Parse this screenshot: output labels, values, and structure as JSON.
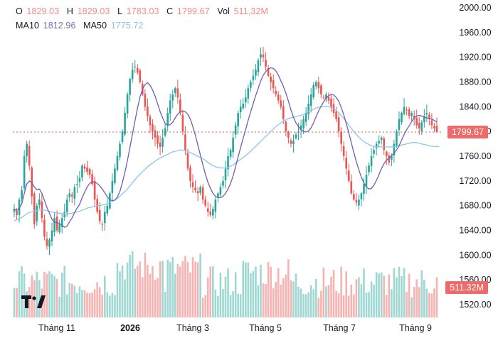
{
  "legend": {
    "open_label": "O",
    "open": "1829.03",
    "high_label": "H",
    "high": "1829.03",
    "low_label": "L",
    "low": "1783.03",
    "close_label": "C",
    "close": "1799.67",
    "vol_label": "Vol",
    "vol": "511,32M",
    "ma10_label": "MA10",
    "ma10": "1812.96",
    "ma50_label": "MA50",
    "ma50": "1775.72"
  },
  "price_tag": "1799.67",
  "volume_tag": "511.32M",
  "colors": {
    "up": "#26a69a",
    "down": "#ef5350",
    "ma10": "#6f5fb2",
    "ma50": "#8cc4ec",
    "last_price": "#ef5350"
  },
  "chart_data": {
    "type": "candlestick",
    "y_ticks": [
      "2000.00",
      "1960.00",
      "1920.00",
      "1880.00",
      "1840.00",
      "1800.00",
      "1760.00",
      "1720.00",
      "1680.00",
      "1640.00",
      "1600.00",
      "1560.00",
      "1520.00"
    ],
    "x_labels": [
      "Tháng 11",
      "2026",
      "Tháng 3",
      "Tháng 5",
      "Tháng 7",
      "Tháng 9"
    ],
    "ylim": [
      1520,
      2000
    ],
    "last_close": 1799.67,
    "close_path": [
      1675,
      1665,
      1690,
      1705,
      1760,
      1780,
      1745,
      1695,
      1650,
      1680,
      1690,
      1660,
      1630,
      1615,
      1625,
      1640,
      1660,
      1640,
      1650,
      1660,
      1670,
      1690,
      1700,
      1695,
      1710,
      1715,
      1725,
      1745,
      1740,
      1735,
      1730,
      1715,
      1690,
      1670,
      1655,
      1650,
      1670,
      1680,
      1700,
      1720,
      1740,
      1760,
      1780,
      1800,
      1830,
      1860,
      1885,
      1900,
      1905,
      1895,
      1880,
      1860,
      1840,
      1825,
      1810,
      1800,
      1790,
      1780,
      1775,
      1790,
      1805,
      1830,
      1850,
      1860,
      1870,
      1855,
      1830,
      1800,
      1770,
      1740,
      1720,
      1710,
      1705,
      1700,
      1710,
      1690,
      1680,
      1670,
      1665,
      1675,
      1690,
      1700,
      1710,
      1720,
      1740,
      1760,
      1770,
      1790,
      1810,
      1830,
      1840,
      1845,
      1855,
      1870,
      1880,
      1890,
      1900,
      1915,
      1925,
      1920,
      1905,
      1890,
      1880,
      1870,
      1860,
      1850,
      1840,
      1820,
      1800,
      1790,
      1780,
      1785,
      1795,
      1800,
      1810,
      1820,
      1830,
      1845,
      1860,
      1875,
      1880,
      1870,
      1860,
      1855,
      1860,
      1850,
      1840,
      1830,
      1820,
      1800,
      1780,
      1760,
      1740,
      1720,
      1700,
      1690,
      1685,
      1690,
      1700,
      1715,
      1730,
      1745,
      1760,
      1770,
      1780,
      1785,
      1790,
      1770,
      1760,
      1750,
      1760,
      1780,
      1800,
      1820,
      1830,
      1840,
      1835,
      1825,
      1830,
      1820,
      1810,
      1805,
      1815,
      1825,
      1830,
      1820,
      1810,
      1805,
      1800
    ],
    "series": [
      {
        "name": "MA10",
        "values": [
          1675,
          1672,
          1676,
          1683,
          1700,
          1715,
          1720,
          1717,
          1710,
          1706,
          1707,
          1700,
          1689,
          1677,
          1668,
          1658,
          1653,
          1653,
          1651,
          1649,
          1645,
          1647,
          1654,
          1660,
          1669,
          1676,
          1682,
          1693,
          1702,
          1710,
          1716,
          1719,
          1718,
          1716,
          1712,
          1707,
          1701,
          1694,
          1690,
          1688,
          1689,
          1694,
          1703,
          1717,
          1734,
          1753,
          1774,
          1796,
          1817,
          1838,
          1856,
          1868,
          1876,
          1879,
          1875,
          1867,
          1857,
          1845,
          1832,
          1822,
          1813,
          1810,
          1811,
          1815,
          1822,
          1828,
          1832,
          1833,
          1832,
          1828,
          1820,
          1808,
          1794,
          1778,
          1762,
          1746,
          1731,
          1718,
          1708,
          1700,
          1695,
          1693,
          1693,
          1695,
          1700,
          1707,
          1716,
          1728,
          1743,
          1759,
          1774,
          1789,
          1803,
          1818,
          1832,
          1845,
          1858,
          1870,
          1882,
          1891,
          1897,
          1901,
          1903,
          1902,
          1898,
          1891,
          1882,
          1873,
          1862,
          1849,
          1835,
          1823,
          1814,
          1808,
          1803,
          1800,
          1799,
          1801,
          1806,
          1814,
          1824,
          1833,
          1841,
          1848,
          1854,
          1858,
          1860,
          1859,
          1855,
          1849,
          1839,
          1827,
          1813,
          1798,
          1782,
          1766,
          1751,
          1738,
          1726,
          1717,
          1710,
          1707,
          1708,
          1713,
          1721,
          1730,
          1740,
          1748,
          1754,
          1757,
          1761,
          1765,
          1770,
          1777,
          1786,
          1795,
          1803,
          1809,
          1816,
          1822,
          1825,
          1826,
          1825,
          1823,
          1822,
          1821,
          1820,
          1818,
          1815
        ]
      },
      {
        "name": "MA50",
        "values": [
          1655,
          1657,
          1659,
          1661,
          1664,
          1667,
          1669,
          1670,
          1671,
          1672,
          1673,
          1673,
          1673,
          1672,
          1671,
          1670,
          1669,
          1668,
          1668,
          1667,
          1667,
          1667,
          1667,
          1668,
          1669,
          1670,
          1671,
          1673,
          1674,
          1676,
          1677,
          1678,
          1679,
          1680,
          1680,
          1681,
          1682,
          1683,
          1685,
          1687,
          1689,
          1692,
          1695,
          1699,
          1703,
          1707,
          1712,
          1717,
          1722,
          1727,
          1731,
          1735,
          1739,
          1743,
          1746,
          1749,
          1752,
          1755,
          1757,
          1759,
          1761,
          1763,
          1765,
          1767,
          1768,
          1769,
          1770,
          1770,
          1769,
          1768,
          1766,
          1764,
          1762,
          1760,
          1758,
          1756,
          1753,
          1750,
          1747,
          1745,
          1743,
          1742,
          1741,
          1741,
          1741,
          1742,
          1744,
          1746,
          1749,
          1752,
          1755,
          1758,
          1761,
          1764,
          1768,
          1772,
          1776,
          1780,
          1784,
          1788,
          1792,
          1796,
          1800,
          1804,
          1808,
          1811,
          1814,
          1817,
          1819,
          1821,
          1822,
          1823,
          1824,
          1825,
          1826,
          1828,
          1830,
          1832,
          1834,
          1836,
          1838,
          1839,
          1840,
          1841,
          1841,
          1840,
          1839,
          1837,
          1834,
          1830,
          1826,
          1821,
          1816,
          1810,
          1805,
          1800,
          1795,
          1791,
          1787,
          1784,
          1781,
          1779,
          1777,
          1776,
          1775,
          1775,
          1775,
          1775,
          1775,
          1775,
          1775,
          1775,
          1776,
          1777,
          1778,
          1779,
          1780,
          1781,
          1782,
          1782,
          1782,
          1781,
          1780,
          1779,
          1778,
          1777,
          1776,
          1776,
          1776,
          1775
        ]
      }
    ],
    "volume_max": 1200
  }
}
